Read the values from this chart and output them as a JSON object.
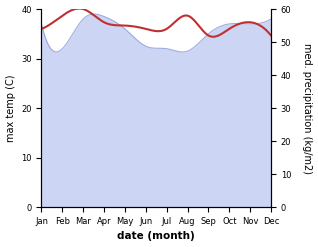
{
  "months": [
    "Jan",
    "Feb",
    "Mar",
    "Apr",
    "May",
    "Jun",
    "Jul",
    "Aug",
    "Sep",
    "Oct",
    "Nov",
    "Dec"
  ],
  "temp_values": [
    37,
    32,
    38,
    38.5,
    36,
    32.5,
    32,
    31.5,
    35,
    37,
    37,
    38
  ],
  "precip_values": [
    54,
    58,
    60,
    56,
    55,
    54,
    54,
    58,
    52,
    54,
    56,
    52
  ],
  "temp_ylim": [
    0,
    40
  ],
  "precip_ylim": [
    0,
    60
  ],
  "temp_line_color": "#c03030",
  "fill_color": "#b8c4f0",
  "fill_alpha": 0.7,
  "xlabel": "date (month)",
  "ylabel_left": "max temp (C)",
  "ylabel_right": "med. precipitation (kg/m2)",
  "tick_label_size": 6,
  "axis_label_size": 7,
  "xlabel_size": 7.5,
  "line_width": 1.5
}
